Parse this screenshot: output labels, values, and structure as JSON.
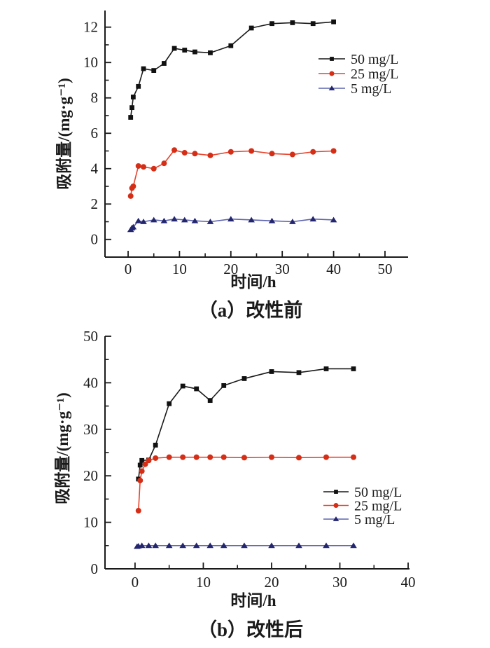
{
  "figure_background": "#ffffff",
  "chart_data": [
    {
      "type": "line",
      "title": "（a）改性前",
      "xlabel": "时间/h",
      "ylabel": "吸附量/(mg·g⁻¹)",
      "xlim": [
        -4.5,
        54.5
      ],
      "ylim": [
        -1,
        12.94
      ],
      "xticks": [
        0,
        10,
        20,
        30,
        40,
        50
      ],
      "xminor": [
        5,
        15,
        25,
        35,
        45
      ],
      "yticks": [
        0,
        2,
        4,
        6,
        8,
        10,
        12
      ],
      "yminor": [
        1,
        3,
        5,
        7,
        9,
        11
      ],
      "grid": false,
      "legend_position": "upper right",
      "axis_color": "#1a1a1a",
      "series": [
        {
          "name": "50 mg/L",
          "marker": "square",
          "line_color": "#1a1a1a",
          "marker_color": "#111111",
          "x": [
            0.5,
            0.75,
            1,
            2,
            3,
            5,
            7,
            9,
            11,
            13,
            16,
            20,
            24,
            28,
            32,
            36,
            40
          ],
          "values": [
            6.9,
            7.45,
            8.05,
            8.65,
            9.65,
            9.55,
            9.95,
            10.8,
            10.7,
            10.6,
            10.55,
            10.95,
            11.95,
            12.2,
            12.25,
            12.2,
            12.3
          ]
        },
        {
          "name": "25 mg/L",
          "marker": "circle",
          "line_color": "#e8432b",
          "marker_color": "#d52e17",
          "x": [
            0.5,
            0.75,
            1,
            2,
            3,
            5,
            7,
            9,
            11,
            13,
            16,
            20,
            24,
            28,
            32,
            36,
            40
          ],
          "values": [
            2.45,
            2.9,
            3.0,
            4.15,
            4.1,
            4.0,
            4.3,
            5.05,
            4.9,
            4.85,
            4.75,
            4.95,
            5.0,
            4.85,
            4.8,
            4.95,
            5.0
          ]
        },
        {
          "name": "5 mg/L",
          "marker": "triangle",
          "line_color": "#5c63ad",
          "marker_color": "#23266f",
          "x": [
            0.5,
            0.75,
            1,
            2,
            3,
            5,
            7,
            9,
            11,
            13,
            16,
            20,
            24,
            28,
            32,
            36,
            40
          ],
          "values": [
            0.55,
            0.65,
            0.7,
            1.05,
            1.0,
            1.1,
            1.05,
            1.15,
            1.1,
            1.05,
            1.0,
            1.15,
            1.1,
            1.05,
            1.0,
            1.15,
            1.1
          ]
        }
      ]
    },
    {
      "type": "line",
      "title": "（b）改性后",
      "xlabel": "时间/h",
      "ylabel": "吸附量/(mg·g⁻¹)",
      "xlim": [
        -4.4,
        40.2
      ],
      "ylim": [
        0,
        50
      ],
      "xticks": [
        0,
        10,
        20,
        30,
        40
      ],
      "xminor": [
        5,
        15,
        25,
        35
      ],
      "yticks": [
        0,
        10,
        20,
        30,
        40,
        50
      ],
      "yminor": [
        5,
        15,
        25,
        35,
        45
      ],
      "grid": false,
      "legend_position": "center right",
      "axis_color": "#1a1a1a",
      "series": [
        {
          "name": "50 mg/L",
          "marker": "square",
          "line_color": "#1a1a1a",
          "marker_color": "#111111",
          "x": [
            0.5,
            0.75,
            1,
            2,
            3,
            5,
            7,
            9,
            11,
            13,
            16,
            20,
            24,
            28,
            32
          ],
          "values": [
            19.3,
            22.3,
            23.3,
            23.4,
            26.6,
            35.5,
            39.3,
            38.7,
            36.2,
            39.4,
            40.9,
            42.4,
            42.2,
            43,
            43
          ]
        },
        {
          "name": "25 mg/L",
          "marker": "circle",
          "line_color": "#e8432b",
          "marker_color": "#d52e17",
          "x": [
            0.5,
            0.75,
            1,
            1.5,
            2,
            3,
            5,
            7,
            9,
            11,
            13,
            16,
            20,
            24,
            28,
            32
          ],
          "values": [
            12.5,
            19,
            21,
            22.5,
            23.3,
            23.8,
            24,
            24,
            24,
            24,
            24,
            23.9,
            24,
            23.9,
            24,
            24
          ]
        },
        {
          "name": "5 mg/L",
          "marker": "triangle",
          "line_color": "#5c63ad",
          "marker_color": "#23266f",
          "x": [
            0.3,
            0.5,
            1,
            2,
            3,
            5,
            7,
            9,
            11,
            13,
            16,
            20,
            24,
            28,
            32
          ],
          "values": [
            4.8,
            4.9,
            5,
            5,
            5,
            5,
            5,
            5,
            5,
            5,
            5,
            5,
            5,
            5,
            5
          ]
        }
      ]
    }
  ]
}
